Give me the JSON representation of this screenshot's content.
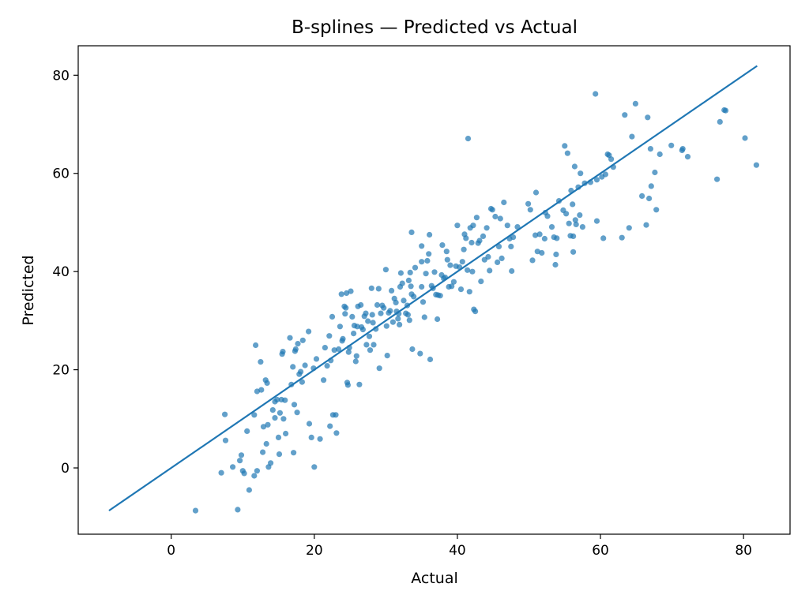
{
  "chart_data": {
    "type": "scatter",
    "title": "B-splines — Predicted vs Actual",
    "xlabel": "Actual",
    "ylabel": "Predicted",
    "xlim": [
      -13,
      86.5
    ],
    "ylim": [
      -13.5,
      86
    ],
    "xticks": [
      0,
      20,
      40,
      60,
      80
    ],
    "yticks": [
      0,
      20,
      40,
      60,
      80
    ],
    "grid": false,
    "colors": {
      "points": "#1f77b4",
      "line": "#1f77b4",
      "axes": "#000000"
    },
    "reference_line": {
      "x": [
        -8.7,
        81.9
      ],
      "y": [
        -8.7,
        81.9
      ]
    },
    "points": [
      [
        3.4,
        -8.7
      ],
      [
        9.3,
        -8.5
      ],
      [
        7.0,
        -1.0
      ],
      [
        8.6,
        0.2
      ],
      [
        9.6,
        1.5
      ],
      [
        9.8,
        2.6
      ],
      [
        10.0,
        -0.6
      ],
      [
        10.2,
        -1.1
      ],
      [
        10.9,
        -4.5
      ],
      [
        11.6,
        -1.6
      ],
      [
        12.0,
        -0.6
      ],
      [
        7.6,
        5.6
      ],
      [
        10.6,
        7.5
      ],
      [
        7.5,
        10.9
      ],
      [
        11.6,
        10.8
      ],
      [
        11.8,
        25.0
      ],
      [
        12.0,
        15.6
      ],
      [
        12.5,
        21.6
      ],
      [
        12.6,
        15.9
      ],
      [
        12.8,
        3.2
      ],
      [
        12.9,
        8.4
      ],
      [
        13.2,
        17.9
      ],
      [
        13.4,
        17.3
      ],
      [
        13.5,
        8.8
      ],
      [
        13.6,
        0.2
      ],
      [
        13.9,
        1.0
      ],
      [
        13.3,
        4.9
      ],
      [
        14.2,
        11.8
      ],
      [
        14.5,
        10.2
      ],
      [
        14.5,
        13.5
      ],
      [
        14.8,
        13.9
      ],
      [
        15.0,
        6.2
      ],
      [
        15.1,
        2.8
      ],
      [
        15.2,
        11.2
      ],
      [
        15.4,
        13.9
      ],
      [
        15.5,
        23.2
      ],
      [
        15.6,
        23.7
      ],
      [
        15.7,
        10.0
      ],
      [
        15.9,
        13.8
      ],
      [
        16.0,
        7.0
      ],
      [
        16.6,
        26.5
      ],
      [
        16.8,
        17.0
      ],
      [
        17.0,
        20.6
      ],
      [
        17.1,
        3.1
      ],
      [
        17.2,
        12.9
      ],
      [
        17.3,
        23.8
      ],
      [
        17.4,
        24.2
      ],
      [
        17.6,
        11.3
      ],
      [
        17.7,
        25.3
      ],
      [
        17.9,
        19.1
      ],
      [
        18.1,
        19.6
      ],
      [
        18.3,
        17.5
      ],
      [
        18.4,
        26.0
      ],
      [
        18.7,
        20.9
      ],
      [
        19.2,
        27.8
      ],
      [
        19.3,
        9.0
      ],
      [
        19.6,
        6.2
      ],
      [
        19.9,
        20.3
      ],
      [
        20.0,
        0.2
      ],
      [
        20.3,
        22.2
      ],
      [
        20.8,
        5.9
      ],
      [
        21.3,
        17.9
      ],
      [
        21.5,
        24.5
      ],
      [
        21.8,
        20.8
      ],
      [
        22.1,
        26.9
      ],
      [
        22.2,
        8.5
      ],
      [
        22.3,
        21.9
      ],
      [
        22.5,
        30.8
      ],
      [
        22.6,
        10.8
      ],
      [
        22.8,
        24.0
      ],
      [
        23.0,
        10.8
      ],
      [
        23.1,
        7.1
      ],
      [
        23.4,
        24.2
      ],
      [
        23.6,
        28.8
      ],
      [
        23.8,
        35.4
      ],
      [
        23.9,
        25.9
      ],
      [
        24.0,
        26.3
      ],
      [
        24.2,
        32.9
      ],
      [
        24.3,
        31.4
      ],
      [
        24.4,
        32.6
      ],
      [
        24.5,
        35.6
      ],
      [
        24.6,
        17.4
      ],
      [
        24.7,
        16.9
      ],
      [
        24.8,
        23.6
      ],
      [
        24.9,
        24.5
      ],
      [
        25.1,
        36.0
      ],
      [
        25.3,
        30.8
      ],
      [
        25.5,
        27.4
      ],
      [
        25.6,
        29.0
      ],
      [
        25.8,
        21.7
      ],
      [
        25.9,
        22.8
      ],
      [
        26.0,
        28.8
      ],
      [
        26.1,
        32.9
      ],
      [
        26.3,
        17.0
      ],
      [
        26.5,
        33.2
      ],
      [
        26.6,
        28.7
      ],
      [
        26.8,
        28.2
      ],
      [
        27.0,
        30.9
      ],
      [
        27.2,
        31.5
      ],
      [
        27.3,
        25.1
      ],
      [
        27.5,
        29.9
      ],
      [
        27.7,
        26.8
      ],
      [
        27.8,
        24.0
      ],
      [
        28.0,
        36.6
      ],
      [
        28.1,
        31.2
      ],
      [
        28.2,
        29.6
      ],
      [
        28.3,
        25.1
      ],
      [
        28.6,
        28.3
      ],
      [
        28.8,
        33.2
      ],
      [
        29.0,
        36.5
      ],
      [
        29.1,
        20.3
      ],
      [
        29.3,
        31.5
      ],
      [
        29.5,
        33.1
      ],
      [
        29.7,
        32.6
      ],
      [
        30.0,
        40.4
      ],
      [
        30.1,
        28.9
      ],
      [
        30.2,
        22.9
      ],
      [
        30.4,
        31.6
      ],
      [
        30.6,
        32.0
      ],
      [
        30.8,
        36.1
      ],
      [
        31.0,
        29.7
      ],
      [
        31.2,
        34.5
      ],
      [
        31.4,
        33.7
      ],
      [
        31.5,
        31.9
      ],
      [
        31.7,
        30.4
      ],
      [
        31.8,
        31.4
      ],
      [
        31.9,
        29.2
      ],
      [
        32.0,
        36.9
      ],
      [
        32.1,
        39.7
      ],
      [
        32.3,
        37.6
      ],
      [
        32.5,
        34.1
      ],
      [
        32.8,
        31.5
      ],
      [
        33.0,
        33.1
      ],
      [
        33.2,
        38.2
      ],
      [
        33.4,
        39.8
      ],
      [
        33.1,
        31.2
      ],
      [
        33.3,
        30.1
      ],
      [
        33.5,
        37.0
      ],
      [
        33.6,
        35.4
      ],
      [
        33.7,
        24.2
      ],
      [
        33.6,
        48.0
      ],
      [
        33.9,
        34.9
      ],
      [
        34.1,
        40.8
      ],
      [
        34.8,
        23.3
      ],
      [
        35.0,
        42.0
      ],
      [
        35.0,
        45.2
      ],
      [
        35.0,
        36.9
      ],
      [
        35.2,
        33.8
      ],
      [
        35.4,
        30.7
      ],
      [
        35.6,
        39.6
      ],
      [
        35.8,
        42.2
      ],
      [
        36.0,
        43.6
      ],
      [
        36.1,
        47.5
      ],
      [
        36.2,
        22.1
      ],
      [
        36.4,
        37.1
      ],
      [
        36.6,
        36.6
      ],
      [
        36.8,
        39.9
      ],
      [
        37.0,
        35.3
      ],
      [
        37.2,
        30.3
      ],
      [
        37.3,
        35.2
      ],
      [
        37.6,
        35.1
      ],
      [
        37.8,
        39.3
      ],
      [
        37.9,
        45.4
      ],
      [
        38.1,
        38.6
      ],
      [
        38.3,
        38.8
      ],
      [
        38.5,
        44.1
      ],
      [
        38.6,
        42.4
      ],
      [
        38.8,
        36.9
      ],
      [
        39.0,
        41.3
      ],
      [
        39.2,
        37.0
      ],
      [
        39.5,
        37.9
      ],
      [
        39.8,
        41.1
      ],
      [
        40.0,
        49.4
      ],
      [
        40.3,
        40.9
      ],
      [
        40.5,
        36.4
      ],
      [
        40.7,
        42.0
      ],
      [
        40.9,
        44.5
      ],
      [
        41.0,
        47.6
      ],
      [
        41.2,
        46.8
      ],
      [
        41.4,
        40.3
      ],
      [
        41.5,
        67.1
      ],
      [
        41.7,
        35.9
      ],
      [
        41.8,
        48.9
      ],
      [
        42.0,
        45.9
      ],
      [
        42.1,
        40.0
      ],
      [
        42.2,
        49.4
      ],
      [
        42.3,
        32.3
      ],
      [
        42.5,
        31.9
      ],
      [
        42.7,
        51.0
      ],
      [
        42.9,
        45.8
      ],
      [
        43.1,
        46.3
      ],
      [
        43.3,
        38.0
      ],
      [
        43.6,
        47.2
      ],
      [
        43.8,
        42.4
      ],
      [
        44.1,
        48.9
      ],
      [
        44.3,
        43.0
      ],
      [
        44.5,
        40.2
      ],
      [
        44.7,
        52.8
      ],
      [
        44.9,
        52.6
      ],
      [
        45.3,
        51.2
      ],
      [
        45.6,
        41.9
      ],
      [
        45.8,
        45.1
      ],
      [
        46.0,
        50.8
      ],
      [
        46.2,
        42.7
      ],
      [
        46.5,
        54.1
      ],
      [
        47.0,
        49.4
      ],
      [
        47.3,
        46.7
      ],
      [
        47.5,
        45.1
      ],
      [
        47.6,
        40.1
      ],
      [
        47.8,
        47.0
      ],
      [
        48.4,
        49.1
      ],
      [
        49.9,
        53.8
      ],
      [
        50.2,
        52.6
      ],
      [
        50.5,
        42.3
      ],
      [
        50.9,
        47.4
      ],
      [
        51.0,
        56.1
      ],
      [
        51.2,
        44.1
      ],
      [
        51.5,
        47.6
      ],
      [
        51.8,
        43.8
      ],
      [
        52.3,
        52.0
      ],
      [
        52.2,
        46.7
      ],
      [
        52.6,
        51.3
      ],
      [
        53.2,
        49.1
      ],
      [
        53.5,
        47.0
      ],
      [
        53.7,
        41.4
      ],
      [
        53.8,
        43.5
      ],
      [
        53.9,
        46.8
      ],
      [
        54.2,
        54.4
      ],
      [
        54.8,
        52.5
      ],
      [
        55.0,
        65.6
      ],
      [
        55.2,
        51.8
      ],
      [
        55.4,
        64.1
      ],
      [
        55.6,
        49.8
      ],
      [
        55.8,
        47.3
      ],
      [
        55.9,
        56.5
      ],
      [
        56.1,
        53.7
      ],
      [
        56.2,
        47.2
      ],
      [
        56.2,
        44.0
      ],
      [
        56.4,
        61.4
      ],
      [
        56.5,
        50.5
      ],
      [
        56.6,
        49.6
      ],
      [
        56.9,
        57.2
      ],
      [
        57.1,
        51.5
      ],
      [
        57.2,
        60.0
      ],
      [
        57.5,
        49.1
      ],
      [
        57.8,
        58.0
      ],
      [
        58.6,
        58.2
      ],
      [
        59.3,
        76.2
      ],
      [
        59.5,
        58.7
      ],
      [
        59.5,
        50.3
      ],
      [
        60.2,
        59.3
      ],
      [
        60.4,
        46.8
      ],
      [
        60.7,
        59.8
      ],
      [
        61.0,
        63.9
      ],
      [
        61.2,
        63.7
      ],
      [
        61.5,
        62.9
      ],
      [
        61.8,
        61.3
      ],
      [
        63.0,
        46.9
      ],
      [
        63.4,
        71.9
      ],
      [
        64.0,
        48.9
      ],
      [
        64.4,
        67.5
      ],
      [
        64.9,
        74.2
      ],
      [
        65.8,
        55.4
      ],
      [
        66.4,
        49.5
      ],
      [
        66.6,
        71.4
      ],
      [
        66.8,
        54.9
      ],
      [
        67.0,
        65.0
      ],
      [
        67.1,
        57.4
      ],
      [
        67.6,
        60.2
      ],
      [
        67.8,
        52.6
      ],
      [
        68.3,
        63.9
      ],
      [
        69.9,
        65.7
      ],
      [
        71.4,
        64.7
      ],
      [
        71.5,
        65.0
      ],
      [
        72.2,
        63.4
      ],
      [
        76.3,
        58.8
      ],
      [
        76.7,
        70.5
      ],
      [
        77.3,
        72.9
      ],
      [
        77.5,
        72.8
      ],
      [
        80.2,
        67.2
      ],
      [
        81.8,
        61.7
      ]
    ]
  }
}
